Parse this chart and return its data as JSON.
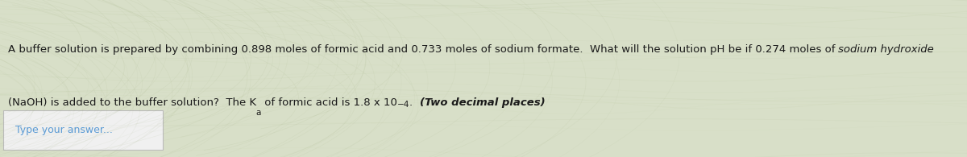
{
  "bg_color": "#d8dfc8",
  "text_color": "#1a1a1a",
  "answer_text_color": "#5b9bd5",
  "answer_box_color": "#f0f0f0",
  "answer_border_color": "#bbbbbb",
  "line1_part1": "A buffer solution is prepared by combining 0.898 moles of formic acid and 0.733 moles of sodium formate.  What will the solution pH be if 0.274 moles of ",
  "line1_italic": "sodium hydroxide",
  "line2_part1": "(NaOH) is added to the buffer solution?  The K",
  "line2_sub": "a",
  "line2_part2": " of formic acid is 1.8 x 10",
  "line2_sup": "−4",
  "line2_part3": ".  ",
  "line2_italic": "(Two decimal places)",
  "answer_label": "Type your answer...",
  "font_size": 9.5,
  "font_size_small": 7.5,
  "font_size_answer": 9.0,
  "figwidth": 12.0,
  "figheight": 1.95,
  "dpi": 100
}
